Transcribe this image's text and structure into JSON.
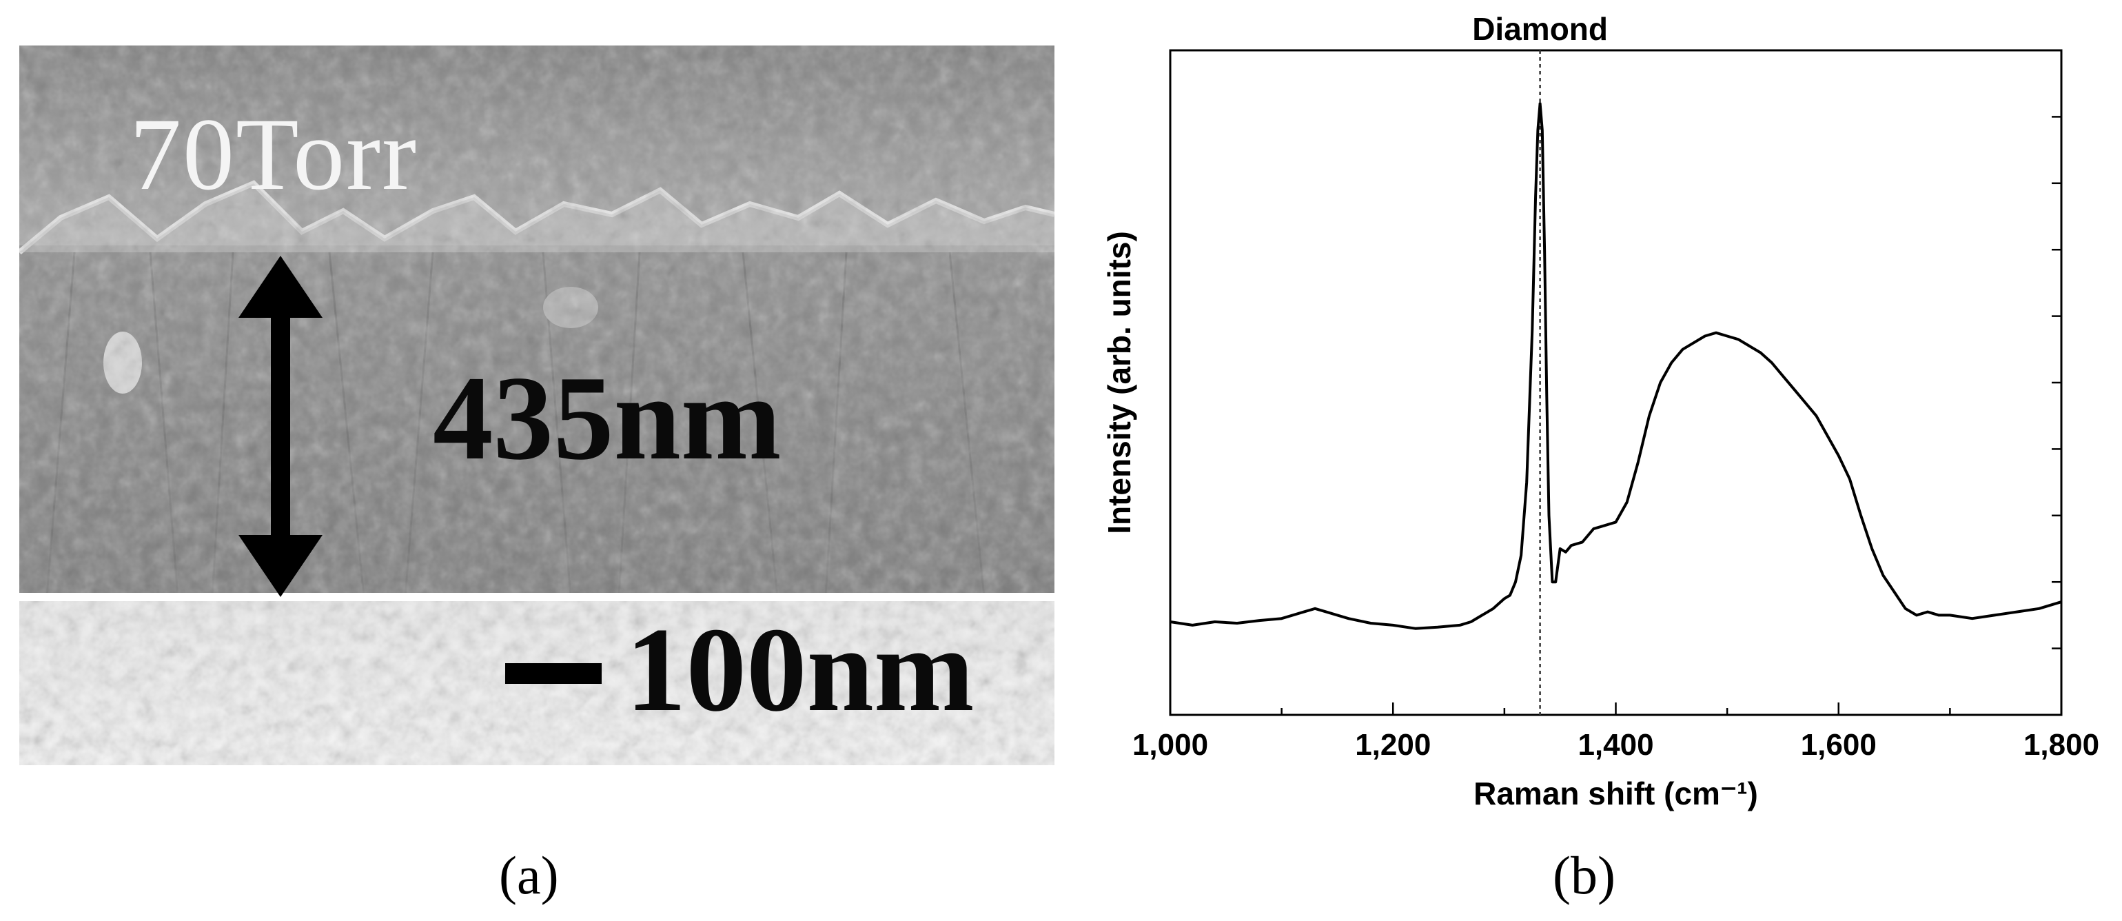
{
  "panel_a": {
    "label": "(a)",
    "pressure_text": "70Torr",
    "thickness_text": "435nm",
    "scale_text": "100nm"
  },
  "panel_b": {
    "label": "(b)"
  },
  "chart_data": {
    "type": "line",
    "title": "Diamond",
    "xlabel": "Raman shift (cm⁻¹)",
    "ylabel": "Intensity (arb. units)",
    "xlim": [
      1000,
      1800
    ],
    "xticks": [
      "1,000",
      "1,200",
      "1,400",
      "1,600",
      "1,800"
    ],
    "ylim": [
      0,
      10
    ],
    "reference_line_x": 1332,
    "grid": false,
    "series": [
      {
        "x": [
          1000,
          1020,
          1040,
          1060,
          1080,
          1100,
          1120,
          1130,
          1140,
          1160,
          1180,
          1200,
          1220,
          1240,
          1260,
          1270,
          1280,
          1290,
          1300,
          1305,
          1310,
          1315,
          1320,
          1325,
          1328,
          1330,
          1332,
          1334,
          1336,
          1338,
          1340,
          1343,
          1346,
          1350,
          1355,
          1360,
          1370,
          1380,
          1390,
          1400,
          1410,
          1420,
          1430,
          1440,
          1450,
          1460,
          1470,
          1480,
          1490,
          1500,
          1510,
          1520,
          1530,
          1540,
          1550,
          1560,
          1570,
          1580,
          1590,
          1600,
          1610,
          1620,
          1630,
          1640,
          1650,
          1660,
          1670,
          1680,
          1690,
          1700,
          1720,
          1740,
          1760,
          1780,
          1800
        ],
        "y": [
          1.4,
          1.35,
          1.4,
          1.38,
          1.42,
          1.45,
          1.55,
          1.6,
          1.55,
          1.45,
          1.38,
          1.35,
          1.3,
          1.32,
          1.35,
          1.4,
          1.5,
          1.6,
          1.75,
          1.8,
          2.0,
          2.4,
          3.5,
          5.8,
          7.8,
          8.8,
          9.2,
          8.8,
          7.0,
          4.8,
          3.0,
          2.0,
          2.0,
          2.5,
          2.45,
          2.55,
          2.6,
          2.8,
          2.85,
          2.9,
          3.2,
          3.8,
          4.5,
          5.0,
          5.3,
          5.5,
          5.6,
          5.7,
          5.75,
          5.7,
          5.65,
          5.55,
          5.45,
          5.3,
          5.1,
          4.9,
          4.7,
          4.5,
          4.2,
          3.9,
          3.55,
          3.0,
          2.5,
          2.1,
          1.85,
          1.6,
          1.5,
          1.55,
          1.5,
          1.5,
          1.45,
          1.5,
          1.55,
          1.6,
          1.7
        ]
      }
    ]
  }
}
